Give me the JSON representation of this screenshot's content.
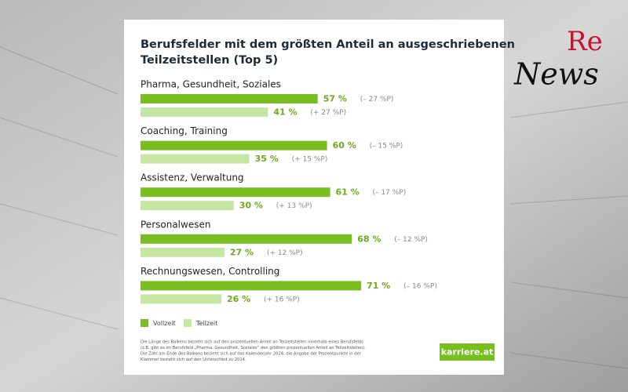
{
  "brand": {
    "re": "Re",
    "news": "News"
  },
  "chart_data": {
    "type": "bar",
    "orientation": "horizontal",
    "title": [
      "Berufsfelder mit dem größten Anteil an ausgeschriebenen",
      "Teilzeitstellen (Top 5)"
    ],
    "categories": [
      "Pharma, Gesundheit, Soziales",
      "Coaching, Training",
      "Assistenz, Verwaltung",
      "Personalwesen",
      "Rechnungswesen, Controlling"
    ],
    "xlim": [
      0,
      100
    ],
    "series": [
      {
        "name": "Vollzeit",
        "color": "#78be20",
        "values": [
          57,
          60,
          61,
          68,
          71
        ],
        "value_labels": [
          "57 %",
          "60 %",
          "61 %",
          "68 %",
          "71 %"
        ],
        "change_labels": [
          "(– 27 %P)",
          "(– 15 %P)",
          "(– 17 %P)",
          "(– 12 %P)",
          "(– 16 %P)"
        ]
      },
      {
        "name": "Teilzeit",
        "color": "#c6e6a3",
        "values": [
          41,
          35,
          30,
          27,
          26
        ],
        "value_labels": [
          "41 %",
          "35 %",
          "30 %",
          "27 %",
          "26 %"
        ],
        "change_labels": [
          "(+ 27 %P)",
          "(+ 15 %P)",
          "(+ 13 %P)",
          "(+ 12 %P)",
          "(+ 16 %P)"
        ]
      }
    ],
    "note": [
      "Die Länge des Balkens bezieht sich auf den prozentuellen Anteil an Teilzeitstellen innerhalb eines Berufsfelds",
      "(z.B. gibt es im Berufsfeld „Pharma, Gesundheit, Soziales“ den größten prozentuellen Anteil an Teilzeitstellen).",
      "Die Zahl am Ende des Balkens bezieht sich auf das Kalenderjahr 2024, die Angabe der Prozentpunkte in der",
      "Klammer bezieht sich auf den Unterschied zu 2014."
    ],
    "logo": "karriere.at"
  }
}
